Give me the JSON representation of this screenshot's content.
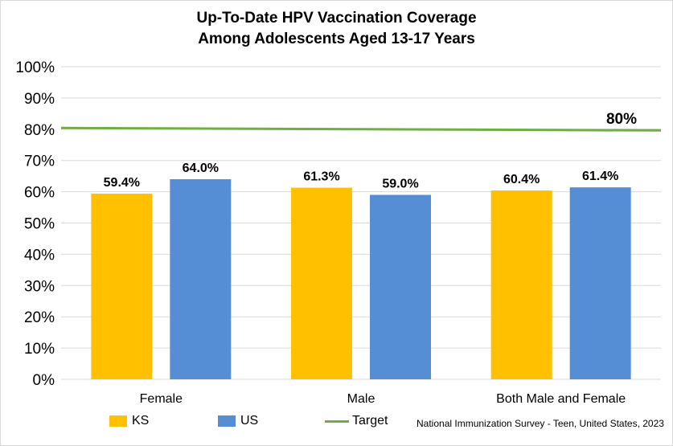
{
  "chart_data": {
    "type": "bar",
    "title_lines": [
      "Up-To-Date HPV Vaccination Coverage",
      "Among Adolescents Aged 13-17 Years"
    ],
    "categories": [
      "Female",
      "Male",
      "Both Male and Female"
    ],
    "series": [
      {
        "name": "KS",
        "values": [
          59.4,
          61.3,
          60.4
        ],
        "labels": [
          "59.4%",
          "61.3%",
          "60.4%"
        ],
        "color": "#FFC000"
      },
      {
        "name": "US",
        "values": [
          64.0,
          59.0,
          61.4
        ],
        "labels": [
          "64.0%",
          "59.0%",
          "61.4%"
        ],
        "color": "#558ED5"
      }
    ],
    "target": {
      "name": "Target",
      "value": 80,
      "label": "80%",
      "color": "#70AD47"
    },
    "ylim": [
      0,
      100
    ],
    "yticks": [
      0,
      10,
      20,
      30,
      40,
      50,
      60,
      70,
      80,
      90,
      100
    ],
    "ytick_labels": [
      "0%",
      "10%",
      "20%",
      "30%",
      "40%",
      "50%",
      "60%",
      "70%",
      "80%",
      "90%",
      "100%"
    ],
    "grid": true,
    "legend_position": "bottom",
    "source": "National Immunization Survey - Teen, United States, 2023"
  }
}
